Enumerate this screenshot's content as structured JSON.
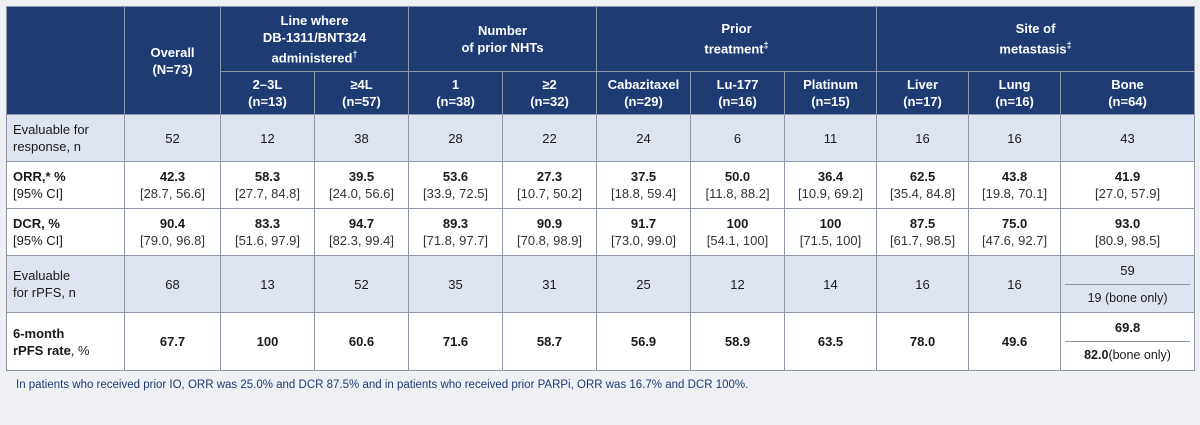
{
  "table": {
    "header": {
      "overall_label": "Overall",
      "overall_n": "(N=73)",
      "groups": [
        {
          "line1": "Line where",
          "line2": "DB-1311/BNT324",
          "line3": "administered",
          "mark": "†"
        },
        {
          "line1": "Number",
          "line2": "of prior NHTs",
          "line3": "",
          "mark": ""
        },
        {
          "line1": "Prior",
          "line2": "treatment",
          "line3": "",
          "mark": "‡"
        },
        {
          "line1": "Site of",
          "line2": "metastasis",
          "line3": "",
          "mark": "‡"
        }
      ],
      "subgroups": [
        {
          "label": "2–3L",
          "n": "(n=13)"
        },
        {
          "label": "≥4L",
          "n": "(n=57)"
        },
        {
          "label": "1",
          "n": "(n=38)"
        },
        {
          "label": "≥2",
          "n": "(n=32)"
        },
        {
          "label": "Cabazitaxel",
          "n": "(n=29)"
        },
        {
          "label": "Lu-177",
          "n": "(n=16)"
        },
        {
          "label": "Platinum",
          "n": "(n=15)"
        },
        {
          "label": "Liver",
          "n": "(n=17)"
        },
        {
          "label": "Lung",
          "n": "(n=16)"
        },
        {
          "label": "Bone",
          "n": "(n=64)"
        }
      ]
    },
    "rows": {
      "eval_resp": {
        "label1": "Evaluable for",
        "label2": "response, n",
        "values": [
          "52",
          "12",
          "38",
          "28",
          "22",
          "24",
          "6",
          "11",
          "16",
          "16",
          "43"
        ]
      },
      "orr": {
        "label_bold": "ORR,* %",
        "label_ci": "[95% CI]",
        "values": [
          "42.3",
          "58.3",
          "39.5",
          "53.6",
          "27.3",
          "37.5",
          "50.0",
          "36.4",
          "62.5",
          "43.8",
          "41.9"
        ],
        "cis": [
          "[28.7, 56.6]",
          "[27.7, 84.8]",
          "[24.0, 56.6]",
          "[33.9, 72.5]",
          "[10.7, 50.2]",
          "[18.8, 59.4]",
          "[11.8, 88.2]",
          "[10.9, 69.2]",
          "[35.4, 84.8]",
          "[19.8, 70.1]",
          "[27.0, 57.9]"
        ]
      },
      "dcr": {
        "label_bold": "DCR, %",
        "label_ci": "[95% CI]",
        "values": [
          "90.4",
          "83.3",
          "94.7",
          "89.3",
          "90.9",
          "91.7",
          "100",
          "100",
          "87.5",
          "75.0",
          "93.0"
        ],
        "cis": [
          "[79.0, 96.8]",
          "[51.6, 97.9]",
          "[82.3, 99.4]",
          "[71.8, 97.7]",
          "[70.8, 98.9]",
          "[73.0, 99.0]",
          "[54.1, 100]",
          "[71.5, 100]",
          "[61.7, 98.5]",
          "[47.6, 92.7]",
          "[80.9, 98.5]"
        ]
      },
      "eval_rpfs": {
        "label1": "Evaluable",
        "label2": "for rPFS, n",
        "values": [
          "68",
          "13",
          "52",
          "35",
          "31",
          "25",
          "12",
          "14",
          "16",
          "16"
        ],
        "bone_top": "59",
        "bone_bottom": "19 (bone only)"
      },
      "rpfs6": {
        "label1": "6-month",
        "label2": "rPFS rate",
        "label2_suffix": ", %",
        "values": [
          "67.7",
          "100",
          "60.6",
          "71.6",
          "58.7",
          "56.9",
          "58.9",
          "63.5",
          "78.0",
          "49.6"
        ],
        "bone_top": "69.8",
        "bone_bottom_bold": "82.0",
        "bone_bottom_rest": " (bone only)"
      }
    }
  },
  "footnote": "In patients who received prior IO, ORR was 25.0% and DCR 87.5% and in patients who received prior PARPi, ORR was 16.7% and DCR 100%.",
  "colors": {
    "header_bg": "#1f3b73",
    "shade_row": "#dde3ef",
    "footnote": "#1f3b73"
  }
}
